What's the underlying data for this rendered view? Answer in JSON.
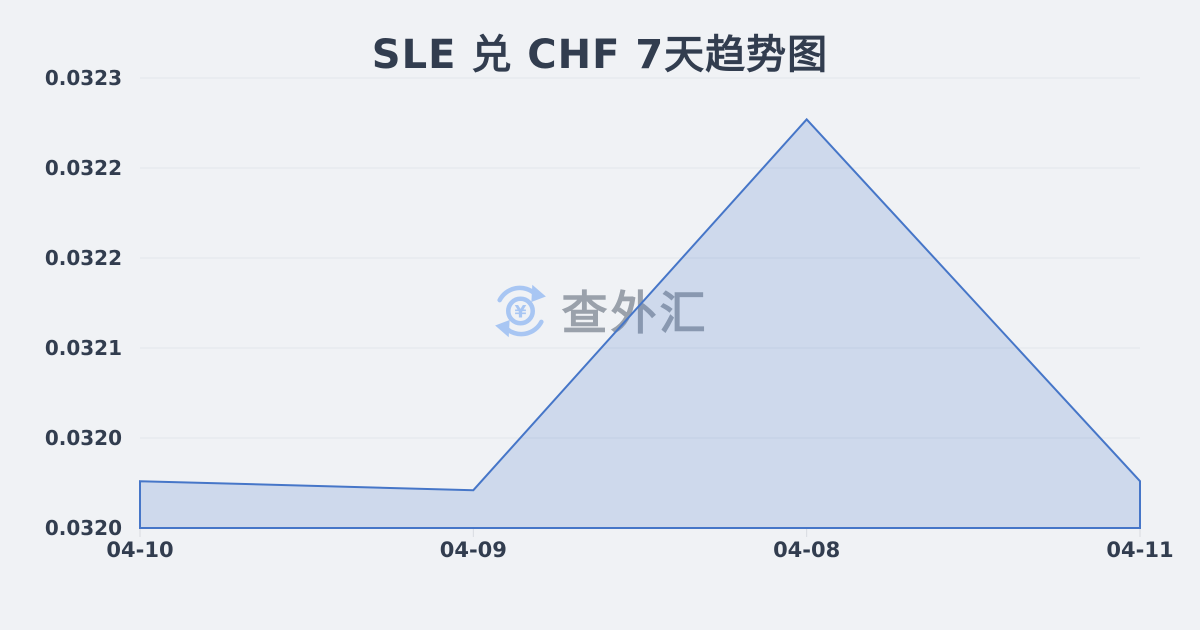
{
  "title": "SLE 兑 CHF 7天趋势图",
  "watermark": {
    "text": "查外汇",
    "icon": "currency-exchange-icon"
  },
  "colors": {
    "background": "#f0f2f5",
    "line": "#4676c8",
    "fill": "rgba(70, 118, 200, 0.20)",
    "grid": "#e2e5ea",
    "tick": "#d8dbe0",
    "axis_text": "#323d4f",
    "title_text": "#323d4f",
    "watermark_text": "#9aa1ab",
    "watermark_icon": "#a8c6f3"
  },
  "chart_data": {
    "type": "area",
    "title": "SLE 兑 CHF 7天趋势图",
    "categories": [
      "04-10",
      "04-09",
      "04-08",
      "04-11"
    ],
    "values": [
      0.032026,
      0.032021,
      0.032227,
      0.032026
    ],
    "xlabel": "",
    "ylabel": "",
    "ylim": [
      0.032,
      0.03225
    ],
    "y_tick_values": [
      0.03225,
      0.0322,
      0.03215,
      0.0321,
      0.03205,
      0.032
    ],
    "y_tick_labels": [
      "0.0323",
      "0.0322",
      "0.0322",
      "0.0321",
      "0.0320",
      "0.0320"
    ],
    "grid": true,
    "legend": false,
    "period_label": "7天"
  }
}
